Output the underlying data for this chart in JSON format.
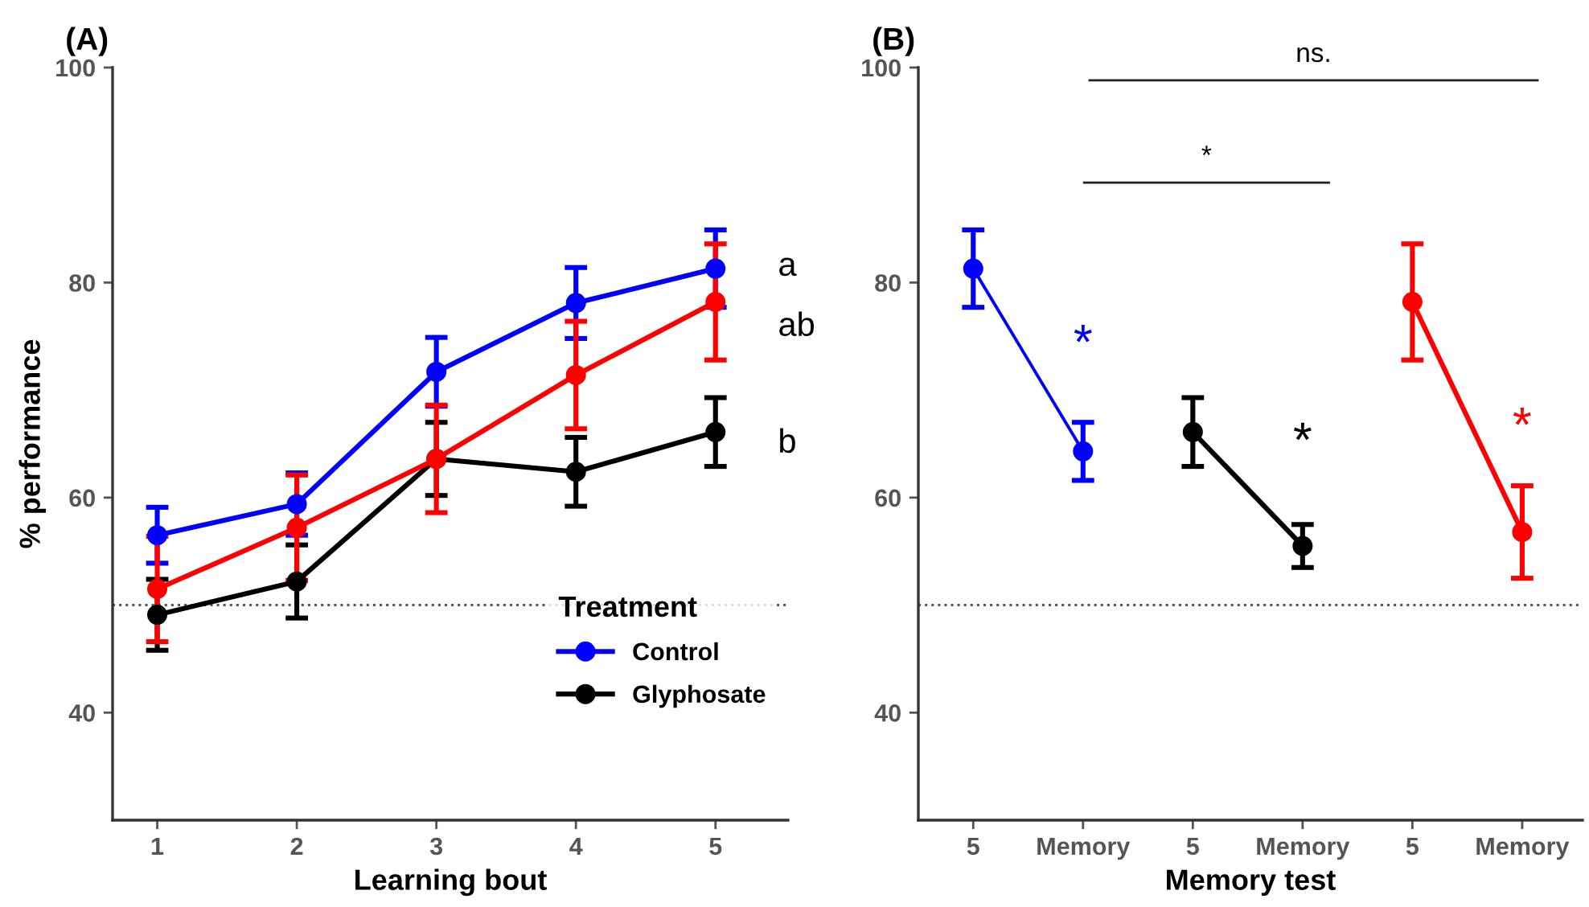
{
  "chart_data": [
    {
      "type": "line",
      "title": "(A)",
      "xlabel": "Learning bout",
      "ylabel": "% performance",
      "legend_title": "Treatment",
      "legend": "bottom right",
      "marker": "circle",
      "line_style": "solid",
      "grid": false,
      "x": [
        1,
        2,
        3,
        4,
        5
      ],
      "xlim": [
        0.68,
        5.52
      ],
      "xticks": [
        1,
        2,
        3,
        4,
        5
      ],
      "ylim": [
        30,
        100
      ],
      "yticks": [
        40,
        60,
        80,
        100
      ],
      "series": [
        {
          "name": "Control",
          "color": "#0000ff",
          "values": [
            56.5,
            59.4,
            71.7,
            78.1,
            81.3
          ],
          "errors": [
            2.6,
            2.9,
            3.2,
            3.3,
            3.6
          ]
        },
        {
          "name": "Glyphosate",
          "color": "#000000",
          "values": [
            49.1,
            52.2,
            63.6,
            62.4,
            66.1
          ],
          "errors": [
            3.3,
            3.4,
            3.4,
            3.2,
            3.2
          ]
        },
        {
          "color": "#ff0000",
          "values": [
            51.5,
            57.2,
            63.6,
            71.4,
            78.2
          ],
          "errors": [
            4.9,
            4.9,
            5.0,
            5.0,
            5.4
          ]
        }
      ],
      "ref_lines": [
        {
          "axis": "y",
          "value": 50,
          "line_style": "dotted",
          "color": "#555555"
        }
      ],
      "annotations": [
        "a",
        "ab",
        "b"
      ]
    },
    {
      "type": "line",
      "title": "(B)",
      "xlabel": "Memory test",
      "marker": "circle",
      "line_style": "solid",
      "grid": false,
      "categories": [
        "5",
        "Memory",
        "5",
        "Memory",
        "5",
        "Memory"
      ],
      "ylim": [
        30,
        100
      ],
      "yticks": [
        40,
        60,
        80,
        100
      ],
      "series": [
        {
          "color": "#0000ff",
          "values": [
            81.3,
            64.3,
            null,
            null,
            null,
            null
          ],
          "errors": [
            3.6,
            2.7,
            null,
            null,
            null,
            null
          ]
        },
        {
          "color": "#000000",
          "values": [
            null,
            null,
            66.1,
            55.5,
            null,
            null
          ],
          "errors": [
            null,
            null,
            3.2,
            2.0,
            null,
            null
          ]
        },
        {
          "color": "#ff0000",
          "values": [
            null,
            null,
            null,
            null,
            78.2,
            56.8
          ],
          "errors": [
            null,
            null,
            null,
            null,
            5.4,
            4.3
          ]
        }
      ],
      "ref_lines": [
        {
          "axis": "y",
          "value": 50,
          "line_style": "dotted",
          "color": "#555555"
        }
      ],
      "annotations": [
        "*",
        "*",
        "*",
        "*",
        "ns."
      ]
    }
  ]
}
